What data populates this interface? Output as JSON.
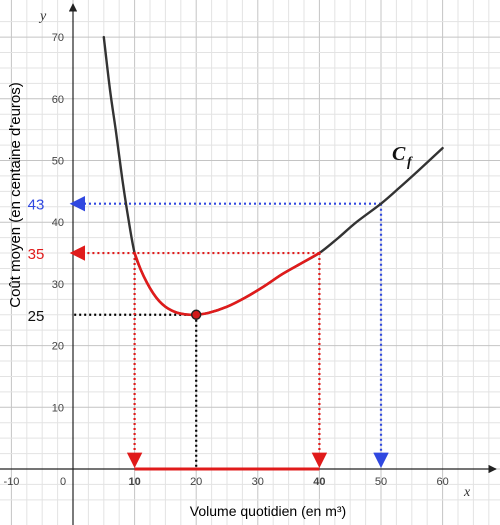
{
  "chart_data": {
    "type": "line",
    "title": "",
    "xlabel": "Volume quotidien (en m³)",
    "ylabel": "Coût moyen (en centaine d'euros)",
    "x_axis_letter": "x",
    "y_axis_letter": "y",
    "xlim": [
      -14,
      68
    ],
    "ylim": [
      -5,
      74
    ],
    "grid": true,
    "x_ticks": [
      -10,
      0,
      10,
      20,
      30,
      40,
      50,
      60
    ],
    "y_ticks": [
      10,
      20,
      30,
      40,
      50,
      60,
      70
    ],
    "curve": {
      "name": "C",
      "subscript": "f",
      "color": "#333333",
      "highlight_color": "#e01b1b",
      "highlight_x_range": [
        10,
        40
      ],
      "x_range": [
        5,
        60
      ],
      "points": [
        {
          "x": 5,
          "y": 70
        },
        {
          "x": 6,
          "y": 61.5
        },
        {
          "x": 7,
          "y": 54.5
        },
        {
          "x": 8,
          "y": 47
        },
        {
          "x": 9,
          "y": 40.5
        },
        {
          "x": 10,
          "y": 35
        },
        {
          "x": 11,
          "y": 32.3
        },
        {
          "x": 12,
          "y": 30.2
        },
        {
          "x": 13,
          "y": 28.5
        },
        {
          "x": 14,
          "y": 27.2
        },
        {
          "x": 15,
          "y": 26.3
        },
        {
          "x": 16,
          "y": 25.7
        },
        {
          "x": 17,
          "y": 25.3
        },
        {
          "x": 18,
          "y": 25.1
        },
        {
          "x": 19,
          "y": 25
        },
        {
          "x": 20,
          "y": 25
        },
        {
          "x": 22,
          "y": 25.3
        },
        {
          "x": 25,
          "y": 26.3
        },
        {
          "x": 28,
          "y": 27.8
        },
        {
          "x": 31,
          "y": 29.6
        },
        {
          "x": 34,
          "y": 31.6
        },
        {
          "x": 37,
          "y": 33.3
        },
        {
          "x": 40,
          "y": 35
        },
        {
          "x": 43,
          "y": 37.4
        },
        {
          "x": 46,
          "y": 40
        },
        {
          "x": 50,
          "y": 43
        },
        {
          "x": 53,
          "y": 45.6
        },
        {
          "x": 56,
          "y": 48.3
        },
        {
          "x": 60,
          "y": 52
        }
      ]
    },
    "minimum_point": {
      "x": 20,
      "y": 25
    },
    "annotations": [
      {
        "label": "25",
        "value": 25,
        "x": 20,
        "color": "#000000",
        "vertical_arrow": false
      },
      {
        "label": "35",
        "value": 35,
        "x_values": [
          10,
          40
        ],
        "color": "#e01b1b",
        "vertical_arrow": true
      },
      {
        "label": "43",
        "value": 43,
        "x": 50,
        "color": "#1f3fbf",
        "vertical_arrow": true
      }
    ],
    "x_interval_highlight": {
      "from": 10,
      "to": 40,
      "color": "#e01b1b",
      "labels": [
        "10",
        "40"
      ]
    }
  }
}
